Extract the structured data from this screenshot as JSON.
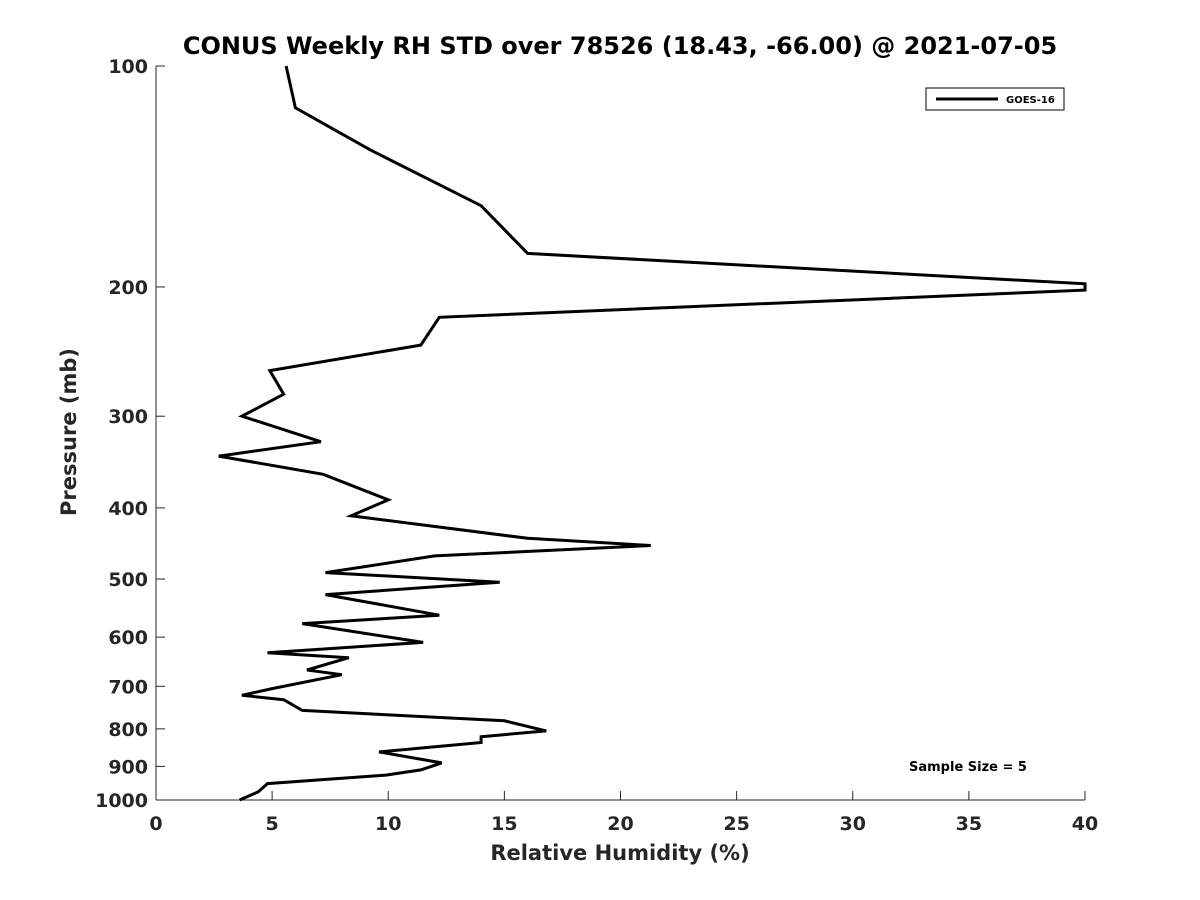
{
  "chart_data": {
    "type": "line",
    "title": "CONUS Weekly RH STD over 78526 (18.43, -66.00) @ 2021-07-05",
    "xlabel": "Relative Humidity (%)",
    "ylabel": "Pressure (mb)",
    "xlim": [
      0,
      40
    ],
    "ylim": [
      100,
      1000
    ],
    "yscale": "log",
    "yreversed": true,
    "x_ticks": [
      0,
      5,
      10,
      15,
      20,
      25,
      30,
      35,
      40
    ],
    "y_ticks": [
      100,
      200,
      300,
      400,
      500,
      600,
      700,
      800,
      900,
      1000
    ],
    "grid": false,
    "legend": {
      "placement": "top-right",
      "entries": [
        "GOES-16"
      ]
    },
    "annotations": [
      "Sample Size = 5"
    ],
    "series": [
      {
        "name": "GOES-16",
        "color": "#000000",
        "x": [
          5.6,
          6.0,
          9.2,
          14.0,
          16.0,
          40.0,
          40.0,
          12.2,
          11.4,
          4.9,
          5.5,
          3.7,
          7.1,
          2.7,
          7.2,
          10.0,
          8.4,
          16.0,
          21.3,
          12.0,
          7.3,
          14.8,
          7.3,
          12.2,
          6.3,
          11.5,
          4.8,
          8.3,
          6.5,
          8.0,
          5.0,
          3.7,
          5.5,
          6.3,
          15.0,
          16.8,
          14.0,
          14.0,
          9.6,
          12.3,
          11.4,
          9.9,
          4.8,
          4.4,
          3.6
        ],
        "y": [
          100,
          114,
          130,
          155,
          180,
          198,
          202,
          220,
          240,
          260,
          280,
          300,
          325,
          340,
          360,
          390,
          410,
          440,
          450,
          465,
          490,
          505,
          525,
          560,
          575,
          610,
          630,
          640,
          665,
          675,
          705,
          720,
          730,
          755,
          780,
          805,
          820,
          835,
          860,
          890,
          910,
          925,
          950,
          975,
          1000
        ]
      }
    ]
  }
}
